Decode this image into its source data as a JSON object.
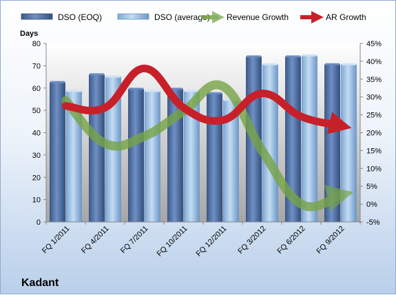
{
  "chart_data": {
    "type": "bar",
    "footer_title": "Kadant",
    "ylabel": "Days",
    "categories": [
      "FQ 1/2011",
      "FQ 4/2011",
      "FQ 7/2011",
      "FQ 10/2011",
      "FQ 12/2011",
      "FQ 3/2012",
      "FQ 6/2012",
      "FQ 9/2012"
    ],
    "bar_series": [
      {
        "name": "DSO (EOQ)",
        "values": [
          62.5,
          66,
          59.5,
          59.5,
          57.5,
          74,
          74,
          70.5
        ],
        "color": "#4f6fa3"
      },
      {
        "name": "DSO (average)",
        "values": [
          58.5,
          65,
          58.5,
          58.5,
          54.5,
          70.5,
          74.5,
          70.5
        ],
        "color": "#9fc2e6"
      }
    ],
    "line_series": [
      {
        "name": "Revenue Growth",
        "values": [
          29,
          17,
          19,
          26,
          33,
          15,
          0,
          2.5
        ],
        "color": "#77a446"
      },
      {
        "name": "AR Growth",
        "values": [
          27.5,
          27,
          38,
          27,
          23.5,
          31,
          24.5,
          22
        ],
        "color": "#c8202a"
      }
    ],
    "y_left": {
      "min": 0,
      "max": 80,
      "step": 10,
      "ticks": [
        "0",
        "10",
        "20",
        "30",
        "40",
        "50",
        "60",
        "70",
        "80"
      ]
    },
    "y_right": {
      "min": -5,
      "max": 45,
      "step": 5,
      "ticks": [
        "-5%",
        "0%",
        "5%",
        "10%",
        "15%",
        "20%",
        "25%",
        "30%",
        "35%",
        "40%",
        "45%"
      ]
    },
    "legend_position": "top",
    "grid": false
  }
}
